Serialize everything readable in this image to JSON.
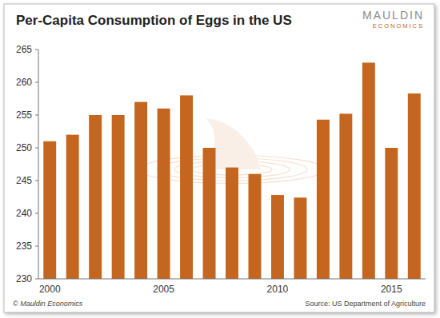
{
  "chart_data": {
    "type": "bar",
    "title": "Per-Capita Consumption of Eggs in the US",
    "categories": [
      "2000",
      null,
      null,
      null,
      null,
      "2005",
      null,
      null,
      null,
      null,
      "2010",
      null,
      null,
      null,
      null,
      "2015",
      null
    ],
    "values": [
      251,
      252,
      255,
      255,
      257,
      256,
      258,
      250,
      247,
      246,
      242.8,
      242.4,
      254.3,
      255.2,
      263,
      250,
      258.3
    ],
    "color": "#c4661f",
    "ylim": [
      230,
      265
    ],
    "yticks": [
      230,
      235,
      240,
      245,
      250,
      255,
      260,
      265
    ],
    "grid": false,
    "annotations": [
      "MAULDIN",
      "ECONOMICS",
      "© Mauldin Economics",
      "Source: US Department of Agriculture"
    ]
  }
}
